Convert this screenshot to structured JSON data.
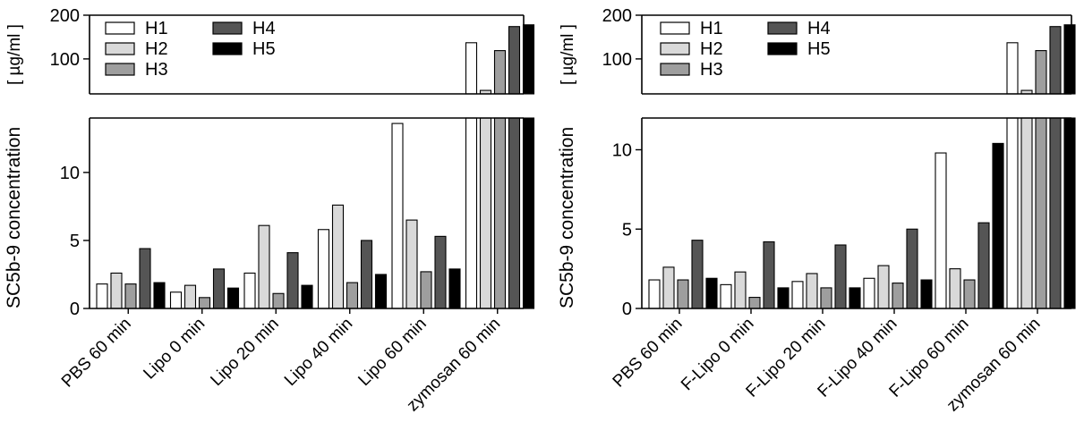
{
  "chart_data": [
    {
      "type": "bar",
      "ylabel": "SC5b-9 concentration   [ µg/ml ]",
      "ylabel_main": "SC5b-9 concentration",
      "ylabel_unit": "[ µg/ml ]",
      "axis_break": true,
      "ylim_lower": [
        0,
        14
      ],
      "ylim_upper": [
        20,
        200
      ],
      "yticks_lower": [
        "0",
        "5",
        "10"
      ],
      "yticks_upper": [
        "100",
        "200"
      ],
      "categories": [
        "PBS 60 min",
        "Lipo 0 min",
        "Lipo 20 min",
        "Lipo 40 min",
        "Lipo 60 min",
        "zymosan 60 min"
      ],
      "series": [
        {
          "name": "H1",
          "color": "#ffffff",
          "values": [
            1.8,
            1.2,
            2.6,
            5.8,
            13.6,
            137
          ]
        },
        {
          "name": "H2",
          "color": "#d9d9d9",
          "values": [
            2.6,
            1.7,
            6.1,
            7.6,
            6.5,
            28
          ]
        },
        {
          "name": "H3",
          "color": "#9e9e9e",
          "values": [
            1.8,
            0.8,
            1.1,
            1.9,
            2.7,
            119
          ]
        },
        {
          "name": "H4",
          "color": "#555555",
          "values": [
            4.4,
            2.9,
            4.1,
            5.0,
            5.3,
            174
          ]
        },
        {
          "name": "H5",
          "color": "#000000",
          "values": [
            1.9,
            1.5,
            1.7,
            2.5,
            2.9,
            178
          ]
        }
      ],
      "legend_position": "top-left",
      "grid": false
    },
    {
      "type": "bar",
      "ylabel": "SC5b-9 concentration   [ µg/ml ]",
      "ylabel_main": "SC5b-9 concentration",
      "ylabel_unit": "[ µg/ml ]",
      "axis_break": true,
      "ylim_lower": [
        0,
        12
      ],
      "ylim_upper": [
        20,
        200
      ],
      "yticks_lower": [
        "0",
        "5",
        "10"
      ],
      "yticks_upper": [
        "100",
        "200"
      ],
      "categories": [
        "PBS 60 min",
        "F-Lipo 0 min",
        "F-Lipo 20 min",
        "F-Lipo 40 min",
        "F-Lipo 60 min",
        "zymosan 60 min"
      ],
      "series": [
        {
          "name": "H1",
          "color": "#ffffff",
          "values": [
            1.8,
            1.5,
            1.7,
            1.9,
            9.8,
            137
          ]
        },
        {
          "name": "H2",
          "color": "#d9d9d9",
          "values": [
            2.6,
            2.3,
            2.2,
            2.7,
            2.5,
            28
          ]
        },
        {
          "name": "H3",
          "color": "#9e9e9e",
          "values": [
            1.8,
            0.7,
            1.3,
            1.6,
            1.8,
            119
          ]
        },
        {
          "name": "H4",
          "color": "#555555",
          "values": [
            4.3,
            4.2,
            4.0,
            5.0,
            5.4,
            174
          ]
        },
        {
          "name": "H5",
          "color": "#000000",
          "values": [
            1.9,
            1.3,
            1.3,
            1.8,
            10.4,
            178
          ]
        }
      ],
      "legend_position": "top-left",
      "grid": false
    }
  ]
}
